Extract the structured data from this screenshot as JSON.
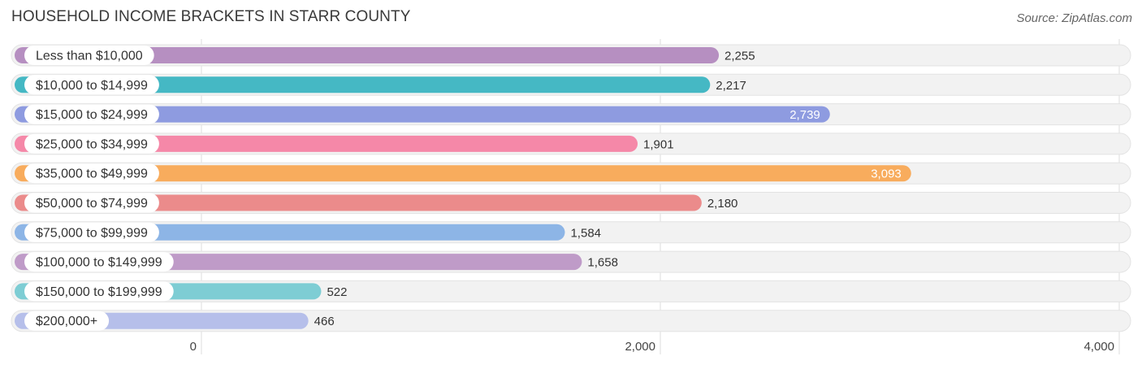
{
  "title": "HOUSEHOLD INCOME BRACKETS IN STARR COUNTY",
  "source": "Source: ZipAtlas.com",
  "chart_data": {
    "type": "bar",
    "orientation": "horizontal",
    "categories": [
      "Less than $10,000",
      "$10,000 to $14,999",
      "$15,000 to $24,999",
      "$25,000 to $34,999",
      "$35,000 to $49,999",
      "$50,000 to $74,999",
      "$75,000 to $99,999",
      "$100,000 to $149,999",
      "$150,000 to $199,999",
      "$200,000+"
    ],
    "values": [
      2255,
      2217,
      2739,
      1901,
      3093,
      2180,
      1584,
      1658,
      522,
      466
    ],
    "value_labels": [
      "2,255",
      "2,217",
      "2,739",
      "1,901",
      "3,093",
      "2,180",
      "1,584",
      "1,658",
      "522",
      "466"
    ],
    "colors": [
      "#b68fc1",
      "#45b8c4",
      "#8e9be0",
      "#f588a8",
      "#f8ac5d",
      "#eb8b8b",
      "#8db5e6",
      "#bf9bc8",
      "#7ecdd4",
      "#b6bfea"
    ],
    "xlim": [
      0,
      4000
    ],
    "xticks": [
      0,
      2000,
      4000
    ],
    "xtick_labels": [
      "0",
      "2,000",
      "4,000"
    ],
    "grid": true,
    "value_labels_inside": [
      false,
      false,
      true,
      false,
      true,
      false,
      false,
      false,
      false,
      false
    ]
  }
}
